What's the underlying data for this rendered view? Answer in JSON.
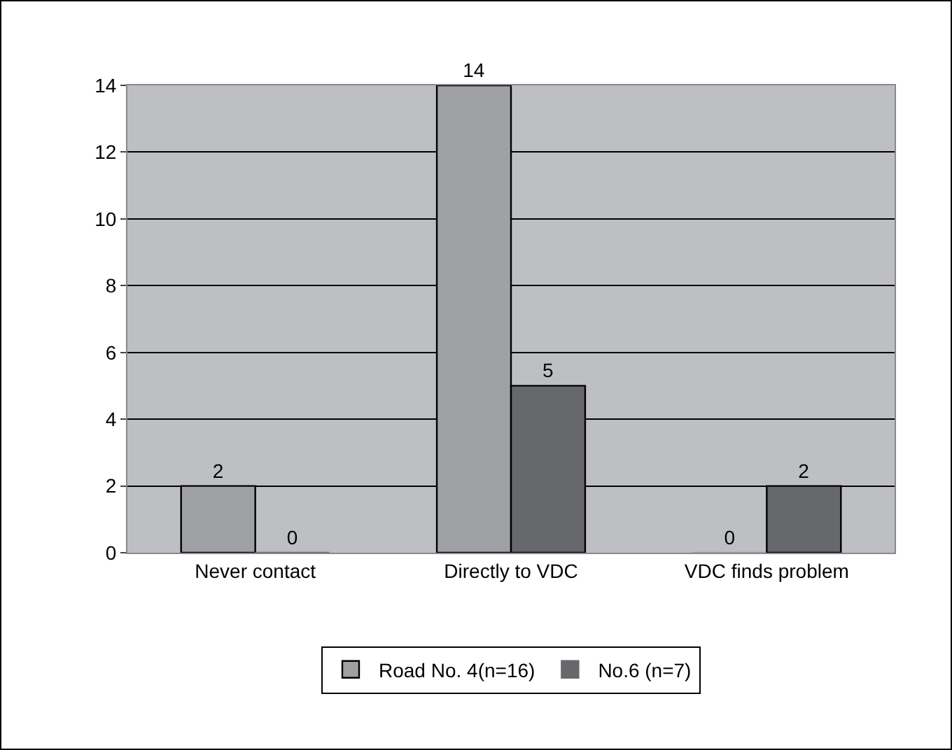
{
  "chart_data": {
    "type": "bar",
    "categories": [
      "Never contact",
      "Directly to VDC",
      "VDC finds problem"
    ],
    "series": [
      {
        "name": "Road No. 4(n=16)",
        "color": "#a0a1a5",
        "values": [
          2,
          14,
          0
        ]
      },
      {
        "name": "No.6 (n=7)",
        "color": "#67686c",
        "values": [
          0,
          5,
          2
        ]
      }
    ],
    "ylim": [
      0,
      14
    ],
    "yticks": [
      0,
      2,
      4,
      6,
      8,
      10,
      12,
      14
    ],
    "grid": "y",
    "legend": "bottom",
    "data_labels": true
  }
}
